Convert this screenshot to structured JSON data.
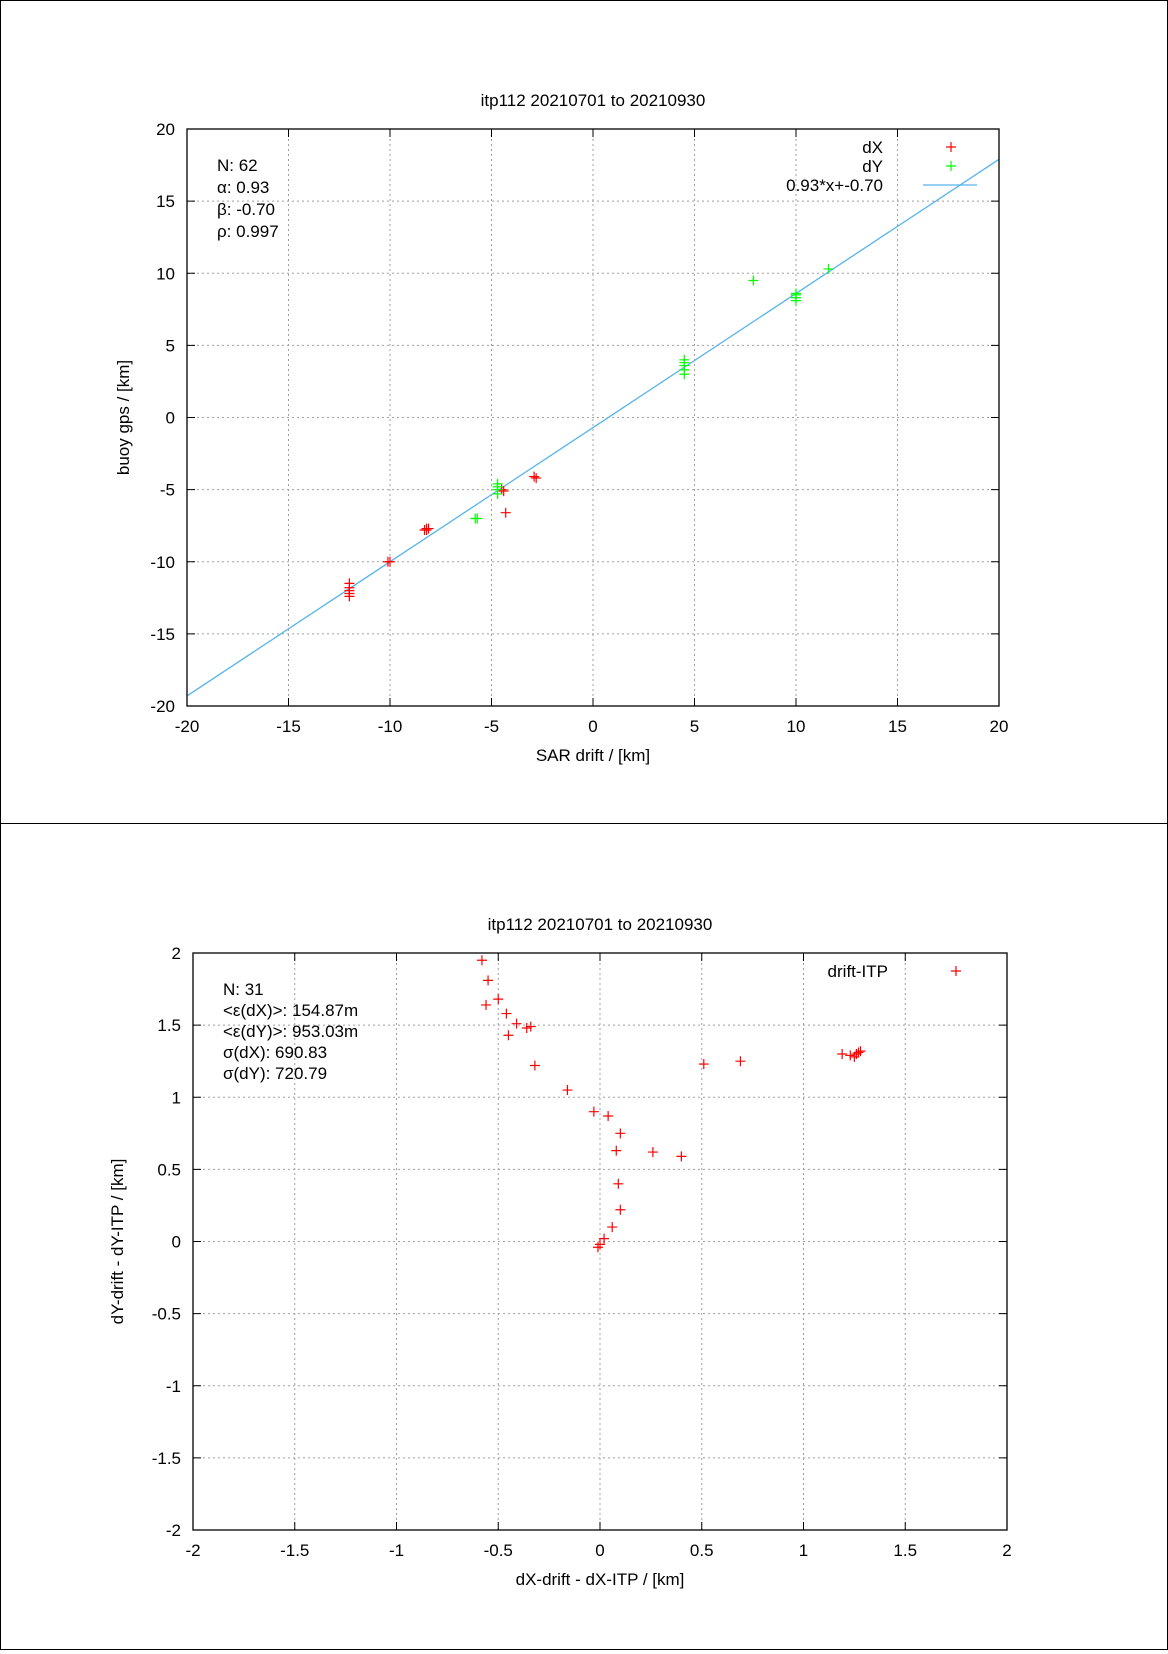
{
  "chart_data": [
    {
      "type": "scatter",
      "title": "itp112 20210701 to 20210930",
      "xlabel": "SAR drift / [km]",
      "ylabel": "buoy gps / [km]",
      "xlim": [
        -20,
        20
      ],
      "ylim": [
        -20,
        20
      ],
      "xticks": [
        "-20",
        "-15",
        "-10",
        "-5",
        "0",
        "5",
        "10",
        "15",
        "20"
      ],
      "yticks": [
        "-20",
        "-15",
        "-10",
        "-5",
        "0",
        "5",
        "10",
        "15",
        "20"
      ],
      "grid": true,
      "legend_position": "top-right",
      "stats": [
        "N: 62",
        "α: 0.93",
        "β: -0.70",
        "ρ: 0.997"
      ],
      "fit": {
        "label": "0.93*x+-0.70",
        "slope": 0.93,
        "intercept": -0.7,
        "color": "#56b4e9"
      },
      "series": [
        {
          "name": "dX",
          "color": "#ff0000",
          "points": [
            [
              -12.0,
              -11.5
            ],
            [
              -12.0,
              -11.8
            ],
            [
              -12.0,
              -12.0
            ],
            [
              -12.0,
              -12.2
            ],
            [
              -12.0,
              -12.4
            ],
            [
              -10.0,
              -10.0
            ],
            [
              -10.1,
              -10.0
            ],
            [
              -8.2,
              -7.7
            ],
            [
              -8.2,
              -7.8
            ],
            [
              -8.3,
              -7.8
            ],
            [
              -8.1,
              -7.7
            ],
            [
              -4.4,
              -5.1
            ],
            [
              -4.5,
              -5.0
            ],
            [
              -4.3,
              -6.6
            ],
            [
              -2.9,
              -4.1
            ],
            [
              -2.8,
              -4.2
            ]
          ]
        },
        {
          "name": "dY",
          "color": "#00ff00",
          "points": [
            [
              -5.8,
              -7.0
            ],
            [
              -5.7,
              -7.0
            ],
            [
              -4.7,
              -4.6
            ],
            [
              -4.7,
              -4.8
            ],
            [
              -4.7,
              -5.0
            ],
            [
              -4.7,
              -5.3
            ],
            [
              4.5,
              3.0
            ],
            [
              4.5,
              3.3
            ],
            [
              4.5,
              3.6
            ],
            [
              4.5,
              3.8
            ],
            [
              4.5,
              4.0
            ],
            [
              7.9,
              9.5
            ],
            [
              10.0,
              8.1
            ],
            [
              10.0,
              8.3
            ],
            [
              10.0,
              8.5
            ],
            [
              10.0,
              8.6
            ],
            [
              11.6,
              10.3
            ]
          ]
        }
      ]
    },
    {
      "type": "scatter",
      "title": "itp112 20210701 to 20210930",
      "xlabel": "dX-drift - dX-ITP / [km]",
      "ylabel": "dY-drift - dY-ITP / [km]",
      "xlim": [
        -2,
        2
      ],
      "ylim": [
        -2,
        2
      ],
      "xticks": [
        "-2",
        "-1.5",
        "-1",
        "-0.5",
        "0",
        "0.5",
        "1",
        "1.5",
        "2"
      ],
      "yticks": [
        "-2",
        "-1.5",
        "-1",
        "-0.5",
        "0",
        "0.5",
        "1",
        "1.5",
        "2"
      ],
      "grid": true,
      "legend_position": "top-right",
      "stats": [
        "N: 31",
        "<ε(dX)>:  154.87m",
        "<ε(dY)>: 953.03m",
        "σ(dX):  690.83",
        "σ(dY):  720.79"
      ],
      "series": [
        {
          "name": "drift-ITP",
          "color": "#ff0000",
          "points": [
            [
              -0.58,
              1.95
            ],
            [
              -0.55,
              1.81
            ],
            [
              -0.5,
              1.68
            ],
            [
              -0.56,
              1.64
            ],
            [
              -0.46,
              1.58
            ],
            [
              -0.41,
              1.51
            ],
            [
              -0.36,
              1.48
            ],
            [
              -0.34,
              1.49
            ],
            [
              -0.45,
              1.43
            ],
            [
              -0.32,
              1.22
            ],
            [
              -0.16,
              1.05
            ],
            [
              -0.03,
              0.9
            ],
            [
              0.04,
              0.87
            ],
            [
              0.1,
              0.75
            ],
            [
              0.08,
              0.63
            ],
            [
              0.26,
              0.62
            ],
            [
              0.4,
              0.59
            ],
            [
              0.09,
              0.4
            ],
            [
              0.1,
              0.22
            ],
            [
              0.06,
              0.1
            ],
            [
              0.02,
              0.02
            ],
            [
              0.0,
              -0.02
            ],
            [
              -0.01,
              -0.04
            ],
            [
              0.51,
              1.23
            ],
            [
              0.69,
              1.25
            ],
            [
              1.19,
              1.3
            ],
            [
              1.23,
              1.29
            ],
            [
              1.26,
              1.3
            ],
            [
              1.28,
              1.32
            ],
            [
              1.27,
              1.31
            ],
            [
              1.25,
              1.28
            ]
          ]
        }
      ]
    }
  ]
}
